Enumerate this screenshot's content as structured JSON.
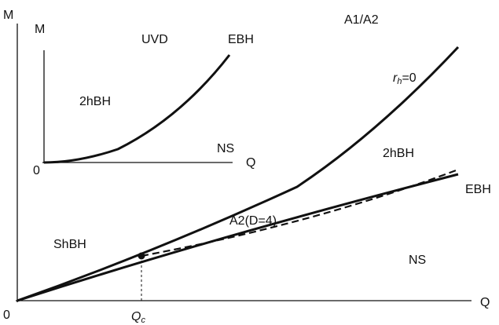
{
  "colors": {
    "ink": "#111111",
    "background": "#ffffff"
  },
  "main": {
    "axis_m": "M",
    "axis_q": "Q",
    "origin": "0",
    "qc_main": "Q",
    "qc_sub": "c",
    "region_top": "A1/A2",
    "curve_rh_main": "r",
    "curve_rh_sub": "h",
    "curve_rh_rest": "=0",
    "region_middle": "2hBH",
    "curve_ebh": "EBH",
    "curve_a2": "A2(D=4)",
    "region_left": "ShBH",
    "region_bottom": "NS"
  },
  "inset": {
    "axis_m": "M",
    "axis_q": "Q",
    "origin": "0",
    "region_top": "UVD",
    "curve_ebh": "EBH",
    "region_left": "2hBH",
    "region_bottom": "NS"
  }
}
